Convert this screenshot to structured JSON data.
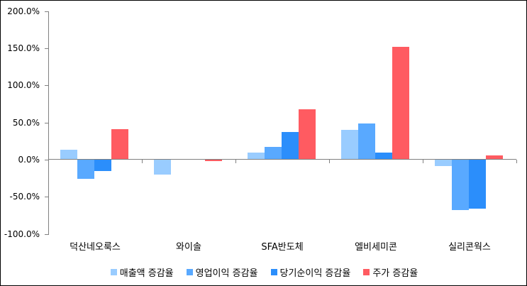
{
  "colors": {
    "series_sales": "#99CCFF",
    "series_op_profit": "#59A9FF",
    "series_net_profit": "#2B8EFB",
    "series_stock_price": "#FF5B61",
    "axis": "#808080",
    "background": "#FFFFFF",
    "border": "#000000"
  },
  "chart_data": {
    "type": "bar",
    "title": "",
    "xlabel": "",
    "ylabel": "",
    "categories": [
      "덕산네오룩스",
      "와이솔",
      "SFA반도체",
      "엘비세미콘",
      "실리콘웍스"
    ],
    "series": [
      {
        "name": "매출액 증감율",
        "color": "#99CCFF",
        "values": [
          13,
          -20,
          10,
          40,
          -9
        ]
      },
      {
        "name": "영업이익 증감율",
        "color": "#59A9FF",
        "values": [
          -26,
          0,
          17,
          49,
          -68
        ]
      },
      {
        "name": "당기순이익 증감율",
        "color": "#2B8EFB",
        "values": [
          -15,
          0,
          37,
          10,
          -66
        ]
      },
      {
        "name": "주가 증감율",
        "color": "#FF5B61",
        "values": [
          41,
          -2,
          68,
          152,
          6
        ]
      }
    ],
    "unit": "%",
    "ylim": [
      -100,
      200
    ],
    "y_tick_step": 50,
    "y_tick_labels": [
      "200.0%",
      "150.0%",
      "100.0%",
      "50.0%",
      "0.0%",
      "-50.0%",
      "-100.0%"
    ],
    "y_tick_values": [
      200,
      150,
      100,
      50,
      0,
      -50,
      -100
    ],
    "grid": false,
    "legend_position": "bottom"
  }
}
